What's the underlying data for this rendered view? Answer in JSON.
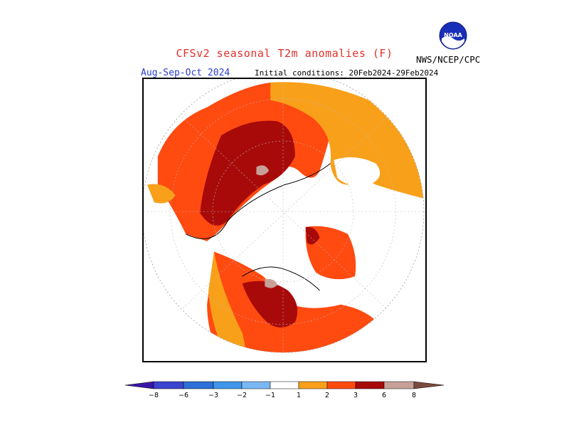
{
  "header": {
    "title": "CFSv2 seasonal T2m anomalies (F)",
    "season": "Aug-Sep-Oct 2024",
    "initial_conditions": "Initial conditions: 20Feb2024-29Feb2024",
    "agency": "NWS/NCEP/CPC",
    "logo_text": "NOAA",
    "logo_icon": "noaa-logo-icon"
  },
  "map": {
    "projection": "north-polar-stereographic",
    "region": "Northern Hemisphere",
    "icon": "polar-map-icon"
  },
  "legend": {
    "ticks": [
      "−8",
      "−6",
      "−3",
      "−2",
      "−1",
      "1",
      "2",
      "3",
      "6",
      "8"
    ],
    "colors": {
      "below_min": "#3a16a8",
      "neg_8_6": "#3c44d0",
      "neg_6_3": "#2f6fd8",
      "neg_3_2": "#3f96ea",
      "neg_2_1": "#7ab8f4",
      "neutral": "#ffffff",
      "pos_1_2": "#f8a01a",
      "pos_2_3": "#ff4a10",
      "pos_3_6": "#a80a0a",
      "pos_6_8": "#c8a098",
      "above_max": "#7a4a3e"
    }
  }
}
